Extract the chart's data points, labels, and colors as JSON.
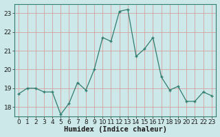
{
  "x": [
    0,
    1,
    2,
    3,
    4,
    5,
    6,
    7,
    8,
    9,
    10,
    11,
    12,
    13,
    14,
    15,
    16,
    17,
    18,
    19,
    20,
    21,
    22,
    23
  ],
  "y": [
    18.7,
    19.0,
    19.0,
    18.8,
    18.8,
    17.6,
    18.2,
    19.3,
    18.9,
    20.0,
    21.7,
    21.5,
    23.1,
    23.2,
    20.7,
    21.1,
    21.7,
    19.6,
    18.9,
    19.1,
    18.3,
    18.3,
    18.8,
    18.6
  ],
  "line_color": "#2e7d6e",
  "marker_color": "#2e7d6e",
  "bg_color": "#cde8e8",
  "grid_color": "#d4a0a0",
  "xlabel": "Humidex (Indice chaleur)",
  "ylim": [
    17.5,
    23.5
  ],
  "yticks": [
    18,
    19,
    20,
    21,
    22,
    23
  ],
  "xtick_labels": [
    "0",
    "1",
    "2",
    "3",
    "4",
    "5",
    "6",
    "7",
    "8",
    "9",
    "10",
    "11",
    "12",
    "13",
    "14",
    "15",
    "16",
    "17",
    "18",
    "19",
    "20",
    "21",
    "22",
    "23"
  ],
  "xlabel_fontsize": 7.5,
  "tick_fontsize": 6.5,
  "fig_bg": "#cde8e8",
  "spine_color": "#2e7d6e"
}
